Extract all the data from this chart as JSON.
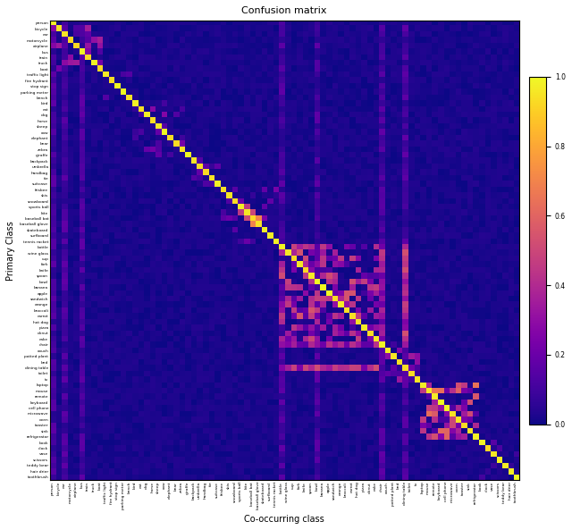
{
  "title": "Confusion matrix",
  "xlabel": "Co-occurring class",
  "ylabel": "Primary Class",
  "colormap": "plasma",
  "vmin": 0.0,
  "vmax": 1.0,
  "colorbar_ticks": [
    0.0,
    0.2,
    0.4,
    0.6,
    0.8,
    1.0
  ],
  "classes": [
    "person",
    "bicycle",
    "car",
    "motorcycle",
    "airplane",
    "bus",
    "train",
    "truck",
    "boat",
    "traffic light",
    "fire hydrant",
    "stop sign",
    "parking meter",
    "bench",
    "bird",
    "cat",
    "dog",
    "horse",
    "sheep",
    "cow",
    "elephant",
    "bear",
    "zebra",
    "giraffe",
    "backpack",
    "umbrella",
    "handbag",
    "tie",
    "suitcase",
    "frisbee",
    "skis",
    "snowboard",
    "sports ball",
    "kite",
    "baseball bat",
    "baseball glove",
    "skateboard",
    "surfboard",
    "tennis racket",
    "bottle",
    "wine glass",
    "cup",
    "fork",
    "knife",
    "spoon",
    "bowl",
    "banana",
    "apple",
    "sandwich",
    "orange",
    "broccoli",
    "carrot",
    "hot dog",
    "pizza",
    "donut",
    "cake",
    "chair",
    "couch",
    "potted plant",
    "bed",
    "dining table",
    "toilet",
    "tv",
    "laptop",
    "mouse",
    "remote",
    "keyboard",
    "cell phone",
    "microwave",
    "oven",
    "toaster",
    "sink",
    "refrigerator",
    "book",
    "clock",
    "vase",
    "scissors",
    "teddy bear",
    "hair drier",
    "toothbrush"
  ],
  "figsize": [
    6.4,
    5.93
  ],
  "dpi": 100
}
